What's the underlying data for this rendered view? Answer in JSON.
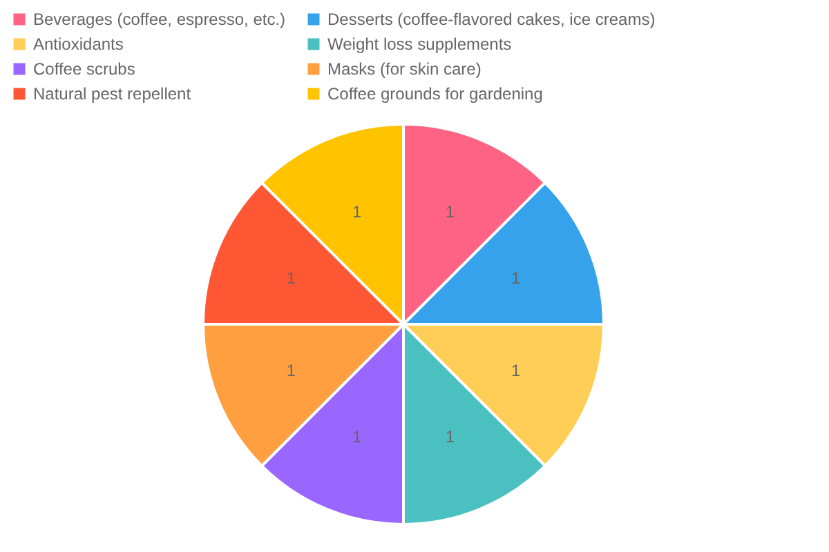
{
  "chart_data": {
    "type": "pie",
    "categories": [
      "Beverages (coffee, espresso, etc.)",
      "Desserts (coffee-flavored cakes, ice creams)",
      "Antioxidants",
      "Weight loss supplements",
      "Coffee scrubs",
      "Masks (for skin care)",
      "Natural pest repellent",
      "Coffee grounds for gardening"
    ],
    "values": [
      1,
      1,
      1,
      1,
      1,
      1,
      1,
      1
    ],
    "colors": [
      "#ff6384",
      "#36a2eb",
      "#ffce56",
      "#4bc0c0",
      "#9966ff",
      "#ff9f40",
      "#ff5733",
      "#ffc300"
    ],
    "data_labels": true,
    "legend": "top"
  }
}
